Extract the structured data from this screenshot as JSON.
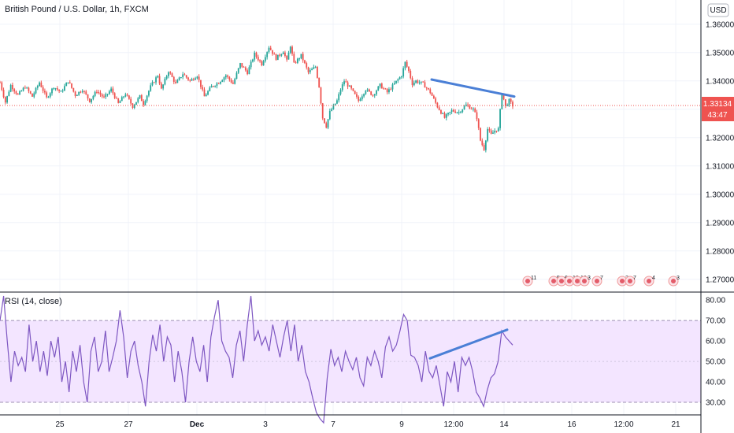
{
  "chart_data": [
    {
      "type": "candlestick",
      "title": "British Pound / U.S. Dollar, 1h, FXCM",
      "currency": "USD",
      "last_price": "1.33134",
      "countdown": "43:47",
      "price_ticks": [
        "1.36000",
        "1.35000",
        "1.34000",
        "1.33000",
        "1.32000",
        "1.31000",
        "1.30000",
        "1.29000",
        "1.28000",
        "1.27000"
      ],
      "ylim": [
        1.268,
        1.363
      ],
      "trend_line": {
        "from": {
          "x": "Dec 10 ~04:00",
          "y": 1.3405
        },
        "to": {
          "x": "Dec 14 ~02:00",
          "y": 1.3345
        },
        "color": "#4a7fd6"
      },
      "ohlc_path": [
        [
          0,
          1.3395
        ],
        [
          3,
          1.3325
        ],
        [
          6,
          1.3385
        ],
        [
          10,
          1.335
        ],
        [
          14,
          1.338
        ],
        [
          18,
          1.3345
        ],
        [
          22,
          1.3395
        ],
        [
          26,
          1.334
        ],
        [
          30,
          1.338
        ],
        [
          34,
          1.336
        ],
        [
          38,
          1.34
        ],
        [
          42,
          1.335
        ],
        [
          46,
          1.337
        ],
        [
          50,
          1.333
        ],
        [
          54,
          1.3365
        ],
        [
          58,
          1.334
        ],
        [
          62,
          1.337
        ],
        [
          66,
          1.332
        ],
        [
          70,
          1.3355
        ],
        [
          74,
          1.331
        ],
        [
          78,
          1.3345
        ],
        [
          80,
          1.332
        ],
        [
          84,
          1.338
        ],
        [
          88,
          1.342
        ],
        [
          90,
          1.337
        ],
        [
          94,
          1.3435
        ],
        [
          98,
          1.339
        ],
        [
          102,
          1.3425
        ],
        [
          106,
          1.34
        ],
        [
          110,
          1.342
        ],
        [
          114,
          1.3345
        ],
        [
          118,
          1.338
        ],
        [
          122,
          1.3395
        ],
        [
          126,
          1.342
        ],
        [
          130,
          1.339
        ],
        [
          134,
          1.346
        ],
        [
          138,
          1.343
        ],
        [
          142,
          1.3495
        ],
        [
          146,
          1.346
        ],
        [
          150,
          1.352
        ],
        [
          154,
          1.348
        ],
        [
          158,
          1.3505
        ],
        [
          160,
          1.347
        ],
        [
          162,
          1.3525
        ],
        [
          164,
          1.346
        ],
        [
          168,
          1.349
        ],
        [
          172,
          1.343
        ],
        [
          176,
          1.345
        ],
        [
          178,
          1.338
        ],
        [
          180,
          1.327
        ],
        [
          182,
          1.324
        ],
        [
          184,
          1.329
        ],
        [
          188,
          1.333
        ],
        [
          190,
          1.337
        ],
        [
          192,
          1.34
        ],
        [
          196,
          1.337
        ],
        [
          200,
          1.333
        ],
        [
          204,
          1.337
        ],
        [
          208,
          1.335
        ],
        [
          212,
          1.3385
        ],
        [
          216,
          1.336
        ],
        [
          220,
          1.339
        ],
        [
          224,
          1.342
        ],
        [
          226,
          1.3465
        ],
        [
          228,
          1.3435
        ],
        [
          230,
          1.339
        ],
        [
          232,
          1.34
        ],
        [
          236,
          1.339
        ],
        [
          240,
          1.336
        ],
        [
          244,
          1.331
        ],
        [
          248,
          1.327
        ],
        [
          252,
          1.3295
        ],
        [
          256,
          1.329
        ],
        [
          260,
          1.3315
        ],
        [
          264,
          1.33
        ],
        [
          266,
          1.327
        ],
        [
          268,
          1.319
        ],
        [
          270,
          1.316
        ],
        [
          272,
          1.323
        ],
        [
          274,
          1.321
        ],
        [
          276,
          1.3225
        ],
        [
          278,
          1.323
        ],
        [
          280,
          1.336
        ],
        [
          282,
          1.331
        ],
        [
          284,
          1.333
        ],
        [
          286,
          1.3313
        ]
      ]
    },
    {
      "type": "line",
      "title": "RSI (14, close)",
      "rsi_ticks": [
        "80.00",
        "70.00",
        "60.00",
        "50.00",
        "40.00",
        "30.00"
      ],
      "ylim": [
        25,
        82
      ],
      "band": [
        30,
        70
      ],
      "trend_line": {
        "from": {
          "x": "Dec 10 ~04:00",
          "y": 51.5
        },
        "to": {
          "x": "Dec 14 ~02:00",
          "y": 65.5
        },
        "color": "#4a7fd6"
      },
      "rsi_path": [
        [
          0,
          70
        ],
        [
          2,
          82
        ],
        [
          4,
          60
        ],
        [
          6,
          40
        ],
        [
          8,
          55
        ],
        [
          10,
          48
        ],
        [
          12,
          52
        ],
        [
          14,
          45
        ],
        [
          16,
          68
        ],
        [
          18,
          50
        ],
        [
          20,
          60
        ],
        [
          22,
          45
        ],
        [
          24,
          55
        ],
        [
          26,
          43
        ],
        [
          28,
          60
        ],
        [
          30,
          52
        ],
        [
          32,
          62
        ],
        [
          34,
          40
        ],
        [
          36,
          50
        ],
        [
          38,
          35
        ],
        [
          40,
          55
        ],
        [
          42,
          45
        ],
        [
          44,
          58
        ],
        [
          46,
          40
        ],
        [
          48,
          30
        ],
        [
          50,
          55
        ],
        [
          52,
          62
        ],
        [
          54,
          45
        ],
        [
          56,
          50
        ],
        [
          58,
          65
        ],
        [
          60,
          45
        ],
        [
          62,
          52
        ],
        [
          64,
          60
        ],
        [
          66,
          75
        ],
        [
          68,
          62
        ],
        [
          70,
          42
        ],
        [
          72,
          55
        ],
        [
          74,
          60
        ],
        [
          76,
          48
        ],
        [
          78,
          40
        ],
        [
          80,
          28
        ],
        [
          82,
          50
        ],
        [
          84,
          63
        ],
        [
          86,
          55
        ],
        [
          88,
          68
        ],
        [
          90,
          50
        ],
        [
          92,
          62
        ],
        [
          94,
          58
        ],
        [
          96,
          40
        ],
        [
          98,
          55
        ],
        [
          100,
          45
        ],
        [
          102,
          30
        ],
        [
          104,
          50
        ],
        [
          106,
          62
        ],
        [
          108,
          50
        ],
        [
          110,
          45
        ],
        [
          112,
          58
        ],
        [
          114,
          40
        ],
        [
          116,
          62
        ],
        [
          118,
          72
        ],
        [
          120,
          80
        ],
        [
          122,
          60
        ],
        [
          124,
          55
        ],
        [
          126,
          52
        ],
        [
          128,
          42
        ],
        [
          130,
          58
        ],
        [
          132,
          65
        ],
        [
          134,
          50
        ],
        [
          136,
          68
        ],
        [
          138,
          82
        ],
        [
          140,
          60
        ],
        [
          142,
          65
        ],
        [
          144,
          58
        ],
        [
          146,
          62
        ],
        [
          148,
          55
        ],
        [
          150,
          68
        ],
        [
          152,
          60
        ],
        [
          154,
          52
        ],
        [
          156,
          62
        ],
        [
          158,
          70
        ],
        [
          160,
          55
        ],
        [
          162,
          68
        ],
        [
          164,
          50
        ],
        [
          166,
          58
        ],
        [
          168,
          45
        ],
        [
          170,
          40
        ],
        [
          172,
          32
        ],
        [
          174,
          25
        ],
        [
          176,
          22
        ],
        [
          178,
          20
        ],
        [
          180,
          42
        ],
        [
          182,
          56
        ],
        [
          184,
          48
        ],
        [
          186,
          52
        ],
        [
          188,
          45
        ],
        [
          190,
          55
        ],
        [
          192,
          50
        ],
        [
          194,
          46
        ],
        [
          196,
          52
        ],
        [
          198,
          42
        ],
        [
          200,
          38
        ],
        [
          202,
          52
        ],
        [
          204,
          48
        ],
        [
          206,
          55
        ],
        [
          208,
          50
        ],
        [
          210,
          42
        ],
        [
          212,
          57
        ],
        [
          214,
          62
        ],
        [
          216,
          55
        ],
        [
          218,
          58
        ],
        [
          220,
          65
        ],
        [
          222,
          73
        ],
        [
          224,
          70
        ],
        [
          226,
          53
        ],
        [
          228,
          52
        ],
        [
          230,
          48
        ],
        [
          232,
          40
        ],
        [
          234,
          55
        ],
        [
          236,
          45
        ],
        [
          238,
          42
        ],
        [
          240,
          48
        ],
        [
          242,
          38
        ],
        [
          244,
          28
        ],
        [
          246,
          45
        ],
        [
          248,
          40
        ],
        [
          250,
          50
        ],
        [
          252,
          35
        ],
        [
          254,
          52
        ],
        [
          256,
          48
        ],
        [
          258,
          52
        ],
        [
          260,
          45
        ],
        [
          262,
          35
        ],
        [
          264,
          32
        ],
        [
          266,
          28
        ],
        [
          268,
          36
        ],
        [
          270,
          42
        ],
        [
          272,
          44
        ],
        [
          274,
          50
        ],
        [
          276,
          65
        ],
        [
          278,
          62
        ],
        [
          280,
          60
        ],
        [
          282,
          58
        ]
      ]
    }
  ],
  "x_axis": {
    "ticks": [
      "25",
      "27",
      "Dec",
      "3",
      "7",
      "9",
      "12:00",
      "14",
      "16",
      "12:00",
      "21"
    ]
  },
  "events": [
    "11",
    "5",
    "6",
    "12",
    "16",
    "3",
    "7",
    "2",
    "7",
    "4",
    "3"
  ],
  "colors": {
    "up": "#26a69a",
    "down": "#ef5350",
    "rsi_line": "#7e57c2",
    "band_fill": "#f3e5ff",
    "trend": "#4a7fd6",
    "price_tag": "#ef5350"
  }
}
